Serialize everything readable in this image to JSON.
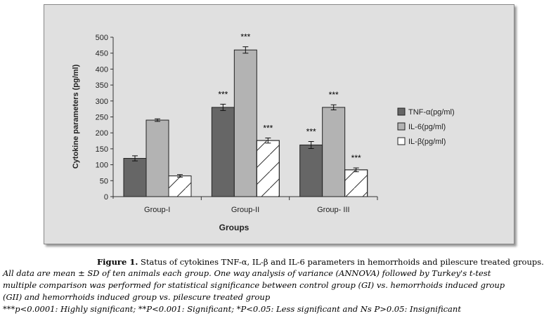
{
  "chart_data": {
    "type": "bar",
    "title": "",
    "xlabel": "Groups",
    "ylabel": "Cytokine parameters (pg/ml)",
    "ylim": [
      0,
      500
    ],
    "yticks": [
      0,
      50,
      100,
      150,
      200,
      250,
      300,
      350,
      400,
      450,
      500
    ],
    "categories": [
      "Group-I",
      "Group-II",
      "Group- III"
    ],
    "legend_position": "right",
    "series": [
      {
        "name": "TNF-α(pg/ml)",
        "color": "#666666",
        "pattern": "solid",
        "values": [
          120,
          280,
          162
        ],
        "errors": [
          8,
          10,
          11
        ],
        "annotations": [
          "",
          "***",
          "***"
        ]
      },
      {
        "name": "IL-6(pg/ml)",
        "color": "#b3b3b3",
        "pattern": "solid",
        "values": [
          240,
          460,
          280
        ],
        "errors": [
          4,
          10,
          8
        ],
        "annotations": [
          "",
          "***",
          "***"
        ]
      },
      {
        "name": "IL-β(pg/ml)",
        "color": "#ffffff",
        "pattern": "hatch",
        "values": [
          65,
          176,
          84
        ],
        "errors": [
          4,
          8,
          6
        ],
        "annotations": [
          "",
          "***",
          "***"
        ]
      }
    ]
  },
  "caption": {
    "label": "Figure 1.",
    "title": " Status of cytokines TNF-α, IL-β and IL-6 parameters in hemorrhoids and pilescure treated groups.",
    "line1": "All data are mean ± SD of ten animals each group. One way analysis of variance (ANNOVA) followed by Turkey's t-test",
    "line2": "multiple comparison was performed for statistical significance between control group (GI) vs. hemorrhoids induced group",
    "line3": "(GII) and hemorrhoids induced group vs. pilescure treated group",
    "line4": "***p<0.0001: Highly significant; **P<0.001: Significant; *P<0.05: Less significant and Ns P>0.05: Insignificant"
  }
}
